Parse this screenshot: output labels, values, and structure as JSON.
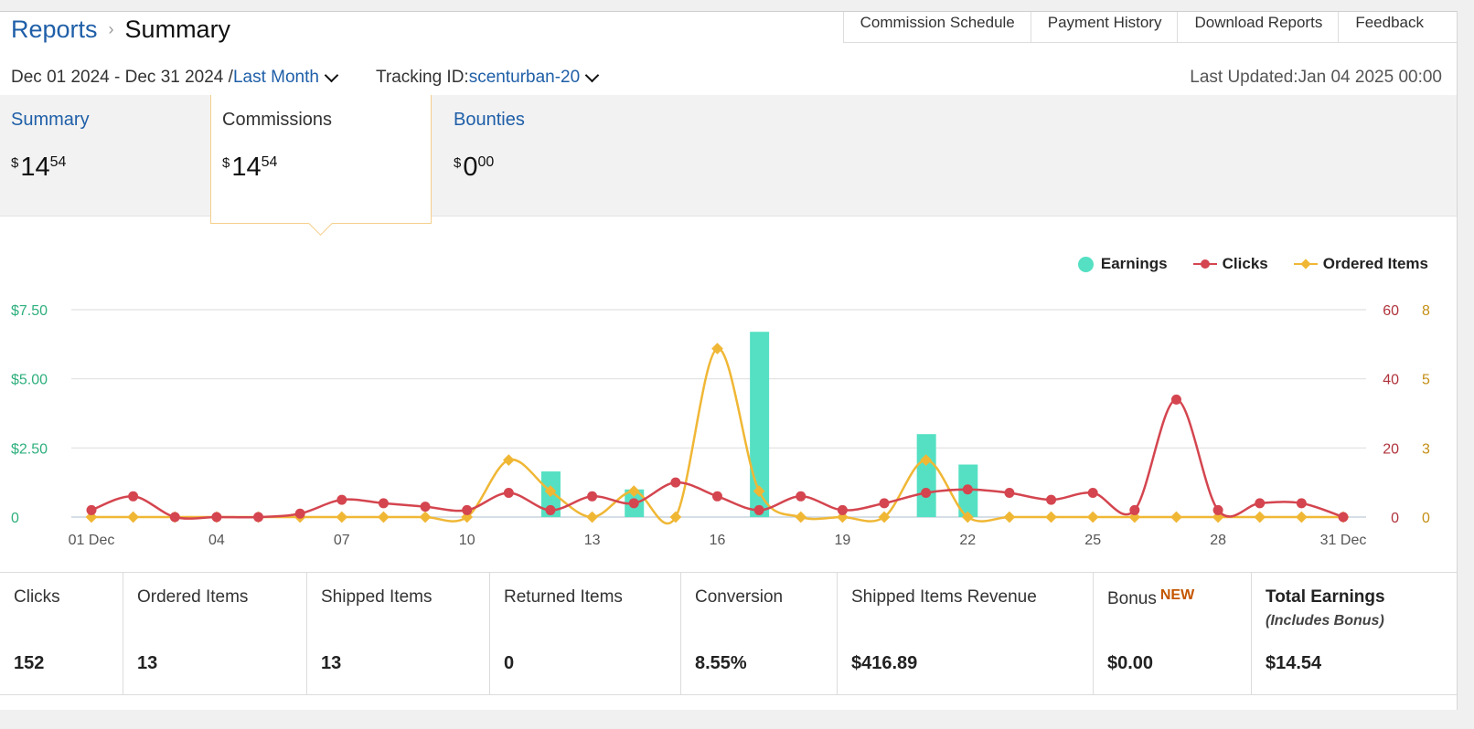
{
  "breadcrumb": {
    "parent": "Reports",
    "current": "Summary"
  },
  "top_tabs": [
    "Commission Schedule",
    "Payment History",
    "Download Reports",
    "Feedback"
  ],
  "date_range": {
    "text": "Dec 01 2024 - Dec 31 2024 /",
    "preset": "Last Month"
  },
  "tracking": {
    "label": "Tracking ID:",
    "value": "scenturban-20"
  },
  "last_updated": "Last Updated:Jan 04 2025 00:00",
  "cards": [
    {
      "title": "Summary",
      "currency": "$",
      "whole": "14",
      "cents": "54"
    },
    {
      "title": "Commissions",
      "currency": "$",
      "whole": "14",
      "cents": "54"
    },
    {
      "title": "Bounties",
      "currency": "$",
      "whole": "0",
      "cents": "00"
    }
  ],
  "legend": {
    "earnings": "Earnings",
    "clicks": "Clicks",
    "orders": "Ordered Items"
  },
  "colors": {
    "earnings": "#55e0c3",
    "clicks": "#d4454f",
    "orders": "#f0b735",
    "left_axis": "#2eaf7d",
    "link": "#1f5fa8"
  },
  "chart_data": {
    "type": "bar+line",
    "x": [
      "01 Dec",
      "02",
      "03",
      "04",
      "05",
      "06",
      "07",
      "08",
      "09",
      "10",
      "11",
      "12",
      "13",
      "14",
      "15",
      "16",
      "17",
      "18",
      "19",
      "20",
      "21",
      "22",
      "23",
      "24",
      "25",
      "26",
      "27",
      "28",
      "29",
      "30",
      "31 Dec"
    ],
    "x_tick_labels": [
      "01 Dec",
      "04",
      "07",
      "10",
      "13",
      "16",
      "19",
      "22",
      "25",
      "28",
      "31 Dec"
    ],
    "left_axis": {
      "ticks": [
        "$7.50",
        "$5.00",
        "$2.50",
        "0"
      ],
      "ylim": [
        0,
        7.5
      ]
    },
    "right_axis_clicks": {
      "ticks": [
        "60",
        "40",
        "20",
        "0"
      ],
      "ylim": [
        0,
        60
      ]
    },
    "right_axis_orders": {
      "ticks": [
        "8",
        "5",
        "3",
        "0"
      ],
      "ylim": [
        0,
        8
      ]
    },
    "series": [
      {
        "name": "Earnings",
        "type": "bar",
        "axis": "left",
        "values": [
          0,
          0,
          0,
          0,
          0,
          0,
          0,
          0,
          0,
          0,
          0,
          1.65,
          0,
          1.0,
          0,
          0,
          6.7,
          0,
          0,
          0,
          3.0,
          1.9,
          0,
          0,
          0,
          0,
          0,
          0,
          0,
          0,
          0
        ]
      },
      {
        "name": "Clicks",
        "type": "line",
        "axis": "right_clicks",
        "values": [
          2,
          6,
          0,
          0,
          0,
          1,
          5,
          4,
          3,
          2,
          7,
          2,
          6,
          4,
          10,
          6,
          2,
          6,
          2,
          4,
          7,
          8,
          7,
          5,
          7,
          2,
          34,
          2,
          4,
          4,
          0
        ]
      },
      {
        "name": "Ordered Items",
        "type": "line",
        "axis": "right_orders",
        "values": [
          0,
          0,
          0,
          0,
          0,
          0,
          0,
          0,
          0,
          0,
          2.2,
          1,
          0,
          1,
          0,
          6.5,
          1,
          0,
          0,
          0,
          2.2,
          0,
          0,
          0,
          0,
          0,
          0,
          0,
          0,
          0,
          0
        ]
      }
    ]
  },
  "stats": [
    {
      "label": "Clicks",
      "value": "152"
    },
    {
      "label": "Ordered Items",
      "value": "13"
    },
    {
      "label": "Shipped Items",
      "value": "13"
    },
    {
      "label": "Returned Items",
      "value": "0"
    },
    {
      "label": "Conversion",
      "value": "8.55%"
    },
    {
      "label": "Shipped Items Revenue",
      "value": "$416.89"
    },
    {
      "label": "Bonus",
      "badge": "NEW",
      "value": "$0.00"
    },
    {
      "label": "Total Earnings",
      "sub": "(Includes Bonus)",
      "value": "$14.54"
    }
  ]
}
